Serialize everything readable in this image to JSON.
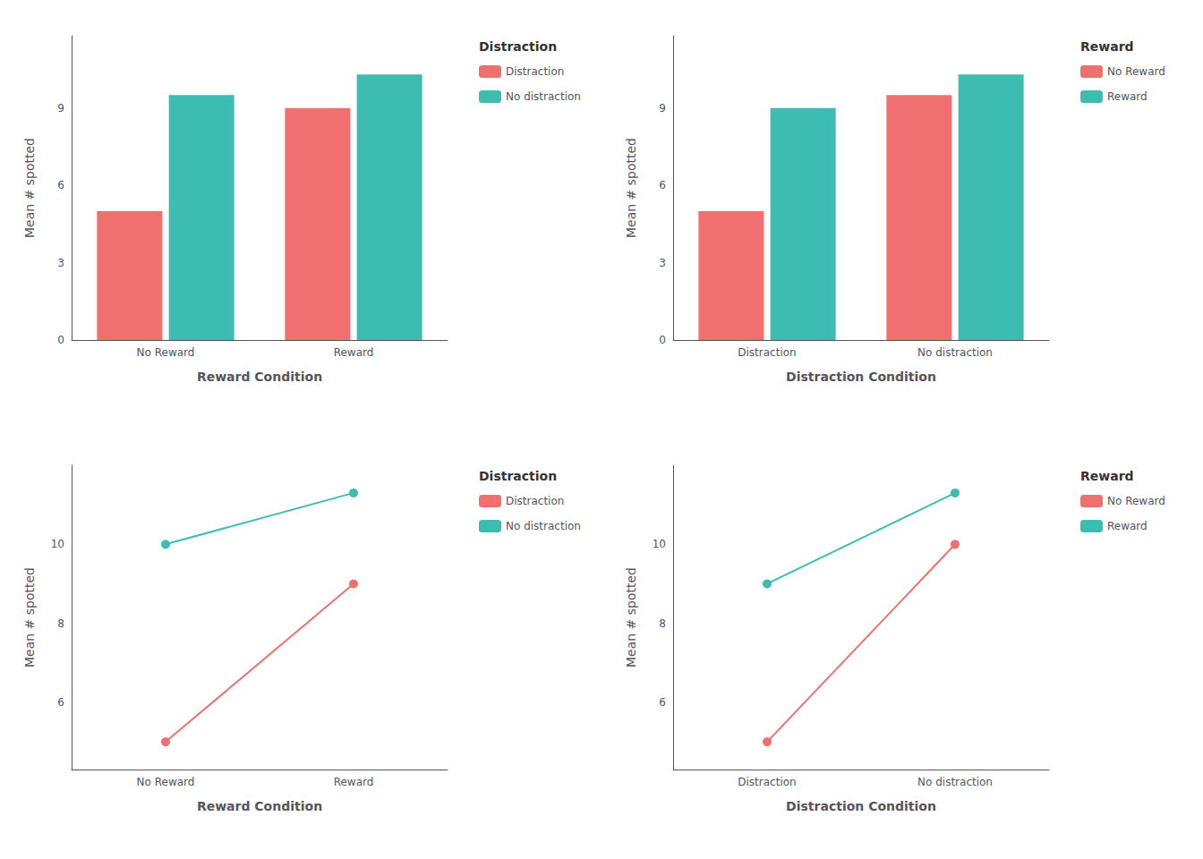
{
  "chart_data": [
    {
      "type": "bar",
      "xlabel": "Reward Condition",
      "ylabel": "Mean # spotted",
      "legend_title": "Distraction",
      "categories": [
        "No Reward",
        "Reward"
      ],
      "series": [
        {
          "name": "Distraction",
          "color": "#F07070",
          "values": [
            5.0,
            9.0
          ]
        },
        {
          "name": "No distraction",
          "color": "#3DBDB1",
          "values": [
            9.5,
            10.3
          ]
        }
      ],
      "ylim": [
        0,
        11.8
      ],
      "yticks": [
        0,
        3,
        6,
        9
      ],
      "grid": false,
      "legend": "right"
    },
    {
      "type": "bar",
      "xlabel": "Distraction Condition",
      "ylabel": "Mean # spotted",
      "legend_title": "Reward",
      "categories": [
        "Distraction",
        "No distraction"
      ],
      "series": [
        {
          "name": "No Reward",
          "color": "#F07070",
          "values": [
            5.0,
            9.5
          ]
        },
        {
          "name": "Reward",
          "color": "#3DBDB1",
          "values": [
            9.0,
            10.3
          ]
        }
      ],
      "ylim": [
        0,
        11.8
      ],
      "yticks": [
        0,
        3,
        6,
        9
      ],
      "grid": false,
      "legend": "right"
    },
    {
      "type": "line",
      "marker": "circle",
      "xlabel": "Reward Condition",
      "ylabel": "Mean # spotted",
      "legend_title": "Distraction",
      "categories": [
        "No Reward",
        "Reward"
      ],
      "series": [
        {
          "name": "Distraction",
          "color": "#F07070",
          "values": [
            5.0,
            9.0
          ]
        },
        {
          "name": "No distraction",
          "color": "#3DBDB1",
          "values": [
            10.0,
            11.3
          ]
        }
      ],
      "ylim": [
        4.3,
        12.0
      ],
      "yticks": [
        6,
        8,
        10
      ],
      "grid": false,
      "legend": "right"
    },
    {
      "type": "line",
      "marker": "circle",
      "xlabel": "Distraction Condition",
      "ylabel": "Mean # spotted",
      "legend_title": "Reward",
      "categories": [
        "Distraction",
        "No distraction"
      ],
      "series": [
        {
          "name": "No Reward",
          "color": "#F07070",
          "values": [
            5.0,
            10.0
          ]
        },
        {
          "name": "Reward",
          "color": "#3DBDB1",
          "values": [
            9.0,
            11.3
          ]
        }
      ],
      "ylim": [
        4.3,
        12.0
      ],
      "yticks": [
        6,
        8,
        10
      ],
      "grid": false,
      "legend": "right"
    }
  ]
}
